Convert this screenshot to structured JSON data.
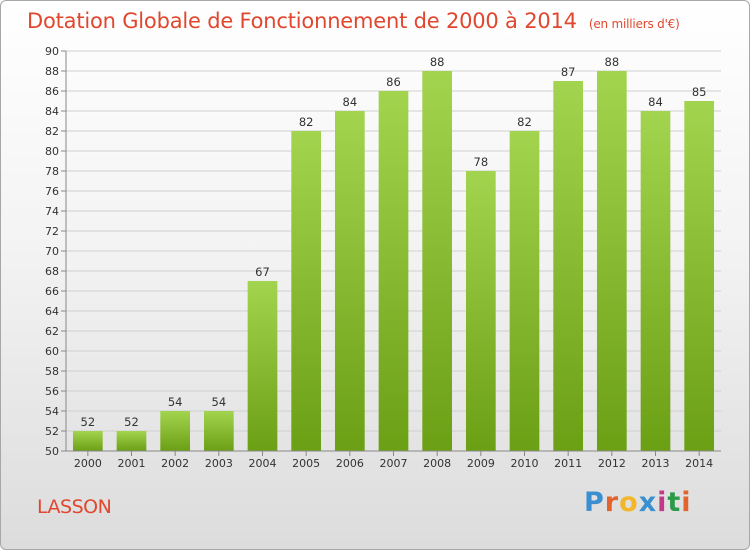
{
  "header": {
    "title": "Dotation Globale de Fonctionnement de 2000 à 2014",
    "unit": "(en milliers d'€)"
  },
  "footer": {
    "commune": "LASSON",
    "logo_text": "Proxiti",
    "logo_colors": [
      "#3a8fd1",
      "#e2632d",
      "#f2b628",
      "#3a8fd1",
      "#c23a87",
      "#2a9b48",
      "#e2632d"
    ]
  },
  "chart_data": {
    "type": "bar",
    "title": "Dotation Globale de Fonctionnement de 2000 à 2014",
    "subtitle": "(en milliers d'€)",
    "categories": [
      "2000",
      "2001",
      "2002",
      "2003",
      "2004",
      "2005",
      "2006",
      "2007",
      "2008",
      "2009",
      "2010",
      "2011",
      "2012",
      "2013",
      "2014"
    ],
    "values": [
      52,
      52,
      54,
      54,
      67,
      82,
      84,
      86,
      88,
      78,
      82,
      87,
      88,
      84,
      85
    ],
    "ylim": [
      50,
      90
    ],
    "ytick_step": 2,
    "grid": true,
    "bar_color_top": "#a3d44f",
    "bar_color_bottom": "#6b9f14",
    "xlabel": "",
    "ylabel": ""
  }
}
